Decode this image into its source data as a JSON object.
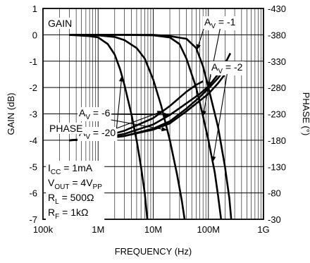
{
  "chart_data": {
    "type": "line",
    "xlabel": "FREQUENCY (Hz)",
    "ylabel_left": "GAIN (dB)",
    "ylabel_right": "PHASE (°)",
    "x_scale": "log",
    "xlim": [
      100000,
      1000000000
    ],
    "ylim_left": [
      -7,
      1
    ],
    "ylim_right": [
      -430,
      -30
    ],
    "grid": true,
    "x_ticks": [
      {
        "value": 100000,
        "label": "100k"
      },
      {
        "value": 1000000,
        "label": "1M"
      },
      {
        "value": 10000000,
        "label": "10M"
      },
      {
        "value": 100000000,
        "label": "100M"
      },
      {
        "value": 1000000000,
        "label": "1G"
      }
    ],
    "y_ticks_left": [
      {
        "value": 1,
        "label": "1"
      },
      {
        "value": 0,
        "label": "0"
      },
      {
        "value": -1,
        "label": "-1"
      },
      {
        "value": -2,
        "label": "-2"
      },
      {
        "value": -3,
        "label": "-3"
      },
      {
        "value": -4,
        "label": "-4"
      },
      {
        "value": -5,
        "label": "-5"
      },
      {
        "value": -6,
        "label": "-6"
      },
      {
        "value": -7,
        "label": "-7"
      }
    ],
    "y_ticks_right": [
      {
        "value": -30,
        "label": "-30"
      },
      {
        "value": -80,
        "label": "-80"
      },
      {
        "value": -130,
        "label": "-130"
      },
      {
        "value": -180,
        "label": "-180"
      },
      {
        "value": -230,
        "label": "-230"
      },
      {
        "value": -280,
        "label": "-280"
      },
      {
        "value": -330,
        "label": "-330"
      },
      {
        "value": -380,
        "label": "-380"
      },
      {
        "value": -430,
        "label": "-430"
      }
    ],
    "group_labels": {
      "gain": "GAIN",
      "phase": "PHASE"
    },
    "series": [
      {
        "group": "gain",
        "gain_label": "-1",
        "points": [
          [
            300000,
            0
          ],
          [
            1000000,
            0
          ],
          [
            3000000,
            0
          ],
          [
            10000000,
            0
          ],
          [
            20000000,
            -0.05
          ],
          [
            40000000,
            -0.15
          ],
          [
            60000000,
            -0.5
          ],
          [
            80000000,
            -1.2
          ],
          [
            100000000,
            -2.0
          ],
          [
            150000000,
            -3.5
          ],
          [
            200000000,
            -5.0
          ],
          [
            240000000,
            -6.2
          ],
          [
            260000000,
            -7.0
          ]
        ]
      },
      {
        "group": "gain",
        "gain_label": "-2",
        "points": [
          [
            300000,
            0
          ],
          [
            1000000,
            0
          ],
          [
            3000000,
            0
          ],
          [
            10000000,
            -0.02
          ],
          [
            20000000,
            -0.1
          ],
          [
            30000000,
            -0.35
          ],
          [
            40000000,
            -0.9
          ],
          [
            60000000,
            -2.0
          ],
          [
            80000000,
            -3.1
          ],
          [
            100000000,
            -4.0
          ],
          [
            130000000,
            -5.2
          ],
          [
            150000000,
            -6.1
          ],
          [
            170000000,
            -7.0
          ]
        ]
      },
      {
        "group": "gain",
        "gain_label": "-6",
        "points": [
          [
            300000,
            0
          ],
          [
            1000000,
            -0.02
          ],
          [
            2000000,
            -0.08
          ],
          [
            3000000,
            -0.2
          ],
          [
            5000000,
            -0.5
          ],
          [
            7000000,
            -0.9
          ],
          [
            10000000,
            -1.7
          ],
          [
            14000000,
            -2.7
          ],
          [
            20000000,
            -4.0
          ],
          [
            27000000,
            -5.3
          ],
          [
            33000000,
            -6.3
          ],
          [
            37000000,
            -7.0
          ]
        ]
      },
      {
        "group": "gain",
        "gain_label": "-20",
        "points": [
          [
            300000,
            0
          ],
          [
            700000,
            -0.05
          ],
          [
            1000000,
            -0.1
          ],
          [
            1500000,
            -0.35
          ],
          [
            2000000,
            -0.75
          ],
          [
            2500000,
            -1.3
          ],
          [
            3000000,
            -1.9
          ],
          [
            4000000,
            -3.0
          ],
          [
            5000000,
            -4.0
          ],
          [
            6000000,
            -5.0
          ],
          [
            7000000,
            -6.0
          ],
          [
            7800000,
            -7.0
          ]
        ]
      },
      {
        "group": "phase",
        "gain_label": "-1",
        "points": [
          [
            300000,
            -180
          ],
          [
            1000000,
            -182
          ],
          [
            3000000,
            -188
          ],
          [
            10000000,
            -200
          ],
          [
            20000000,
            -212
          ],
          [
            40000000,
            -235
          ],
          [
            70000000,
            -255
          ],
          [
            100000000,
            -268
          ],
          [
            150000000,
            -288
          ],
          [
            200000000,
            -305
          ],
          [
            250000000,
            -320
          ]
        ]
      },
      {
        "group": "phase",
        "gain_label": "-2",
        "points": [
          [
            300000,
            -180
          ],
          [
            1000000,
            -182
          ],
          [
            3000000,
            -188
          ],
          [
            10000000,
            -202
          ],
          [
            20000000,
            -216
          ],
          [
            40000000,
            -240
          ],
          [
            70000000,
            -262
          ],
          [
            100000000,
            -278
          ],
          [
            150000000,
            -298
          ],
          [
            200000000,
            -315
          ],
          [
            250000000,
            -330
          ]
        ]
      },
      {
        "group": "phase",
        "gain_label": "-6",
        "points": [
          [
            300000,
            -180
          ],
          [
            1000000,
            -183
          ],
          [
            3000000,
            -192
          ],
          [
            10000000,
            -210
          ],
          [
            20000000,
            -228
          ],
          [
            40000000,
            -250
          ],
          [
            70000000,
            -268
          ],
          [
            100000000,
            -282
          ],
          [
            150000000,
            -305
          ],
          [
            200000000,
            -325
          ],
          [
            250000000,
            -345
          ]
        ]
      },
      {
        "group": "phase",
        "gain_label": "-20",
        "points": [
          [
            300000,
            -180
          ],
          [
            1000000,
            -184
          ],
          [
            3000000,
            -198
          ],
          [
            10000000,
            -222
          ],
          [
            20000000,
            -245
          ],
          [
            40000000,
            -272
          ],
          [
            60000000,
            -285
          ],
          [
            80000000,
            -292
          ]
        ]
      }
    ],
    "conditions": [
      {
        "name": "I",
        "sub": "CC",
        "value": " = 1mA"
      },
      {
        "name": "V",
        "sub": "OUT",
        "value": " = 4V",
        "value_sub": "PP"
      },
      {
        "name": "R",
        "sub": "L",
        "value": " = 500Ω"
      },
      {
        "name": "R",
        "sub": "F",
        "value": " = 1kΩ"
      }
    ],
    "annotation_symbol": "A",
    "annotation_sub": "V",
    "annotation_eq": " =",
    "annotations": [
      {
        "gain_label": "-1",
        "placement": "upper-right",
        "targets": [
          {
            "group": "gain",
            "x": 62000000
          },
          {
            "group": "gain",
            "x": 100000000
          }
        ]
      },
      {
        "gain_label": "-2",
        "placement": "right-middle",
        "targets": [
          {
            "group": "gain",
            "x": 80000000
          },
          {
            "group": "gain",
            "x": 120000000
          }
        ]
      },
      {
        "gain_label": "-6",
        "placement": "lower-middle",
        "targets": [
          {
            "group": "gain",
            "x": 18000000
          },
          {
            "group": "phase",
            "x": 20000000
          }
        ]
      },
      {
        "gain_label": "-20",
        "placement": "lower-middle",
        "targets": [
          {
            "group": "gain",
            "x": 2700000
          },
          {
            "group": "phase",
            "x": 15000000
          }
        ]
      }
    ]
  }
}
